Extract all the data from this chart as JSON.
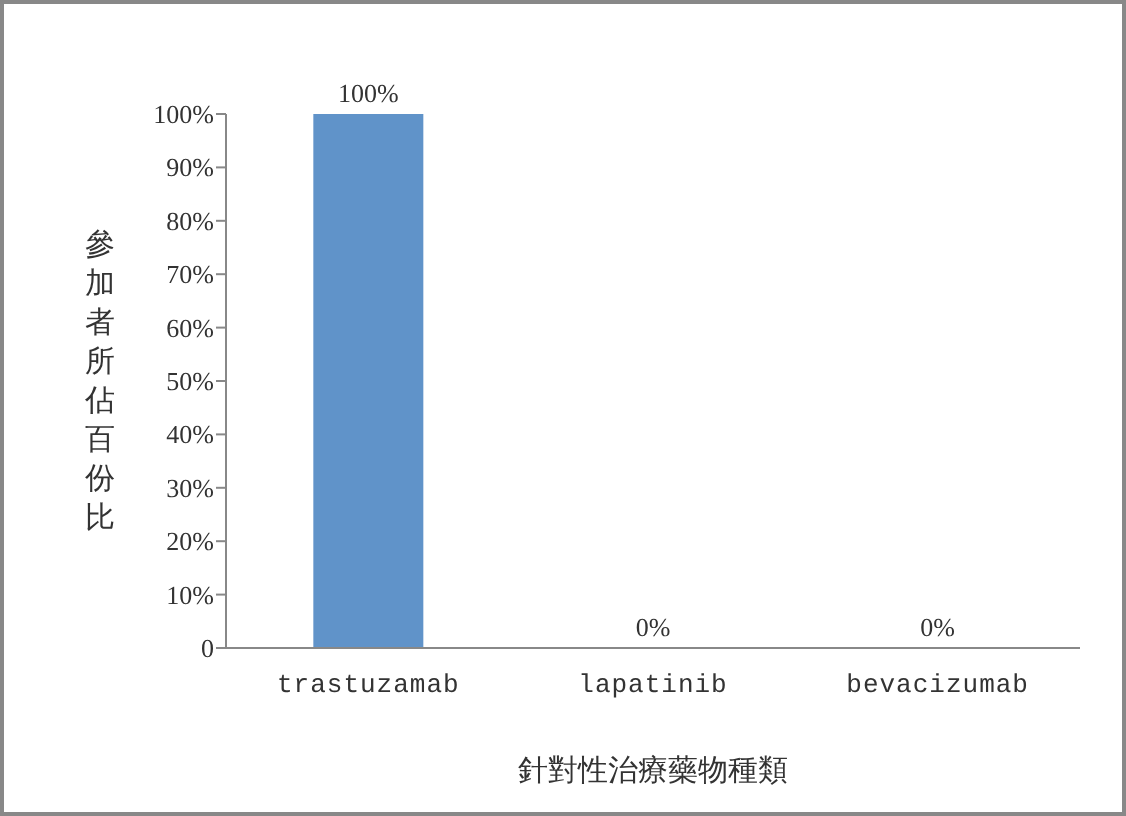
{
  "chart_data": {
    "type": "bar",
    "xlabel": "針對性治療藥物種類",
    "ylabel": "參加者所佔百份比",
    "categories": [
      "trastuzamab",
      "lapatinib",
      "bevacizumab"
    ],
    "values": [
      100,
      0,
      0
    ],
    "color": "#6093c9",
    "value_labels": [
      "100%",
      "0%",
      "0%"
    ],
    "ylim": [
      0,
      100
    ],
    "yticks": [
      0,
      {
        "value": 10,
        "label": "10%"
      },
      {
        "value": 20,
        "label": "20%"
      },
      {
        "value": 30,
        "label": "30%"
      },
      {
        "value": 40,
        "label": "40%"
      },
      {
        "value": 50,
        "label": "50%"
      },
      {
        "value": 60,
        "label": "60%"
      },
      {
        "value": 70,
        "label": "70%"
      },
      {
        "value": 80,
        "label": "80%"
      },
      {
        "value": 90,
        "label": "90%"
      },
      {
        "value": 100,
        "label": "100%"
      }
    ],
    "grid": false
  }
}
